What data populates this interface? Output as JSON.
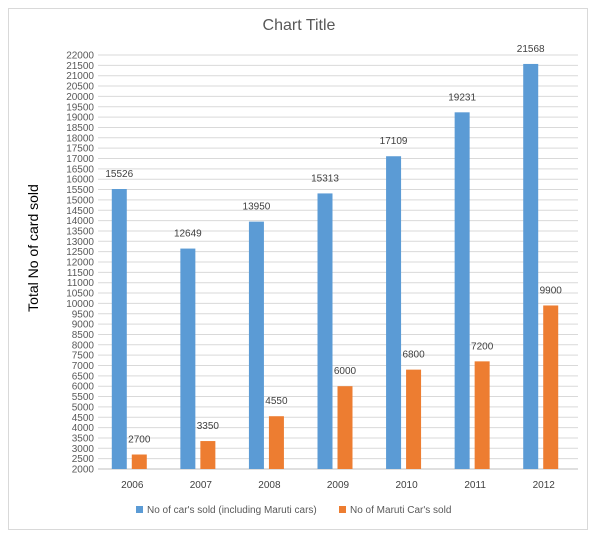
{
  "chart_data": {
    "type": "bar",
    "title": "Chart Title",
    "xlabel": "",
    "ylabel": "Total No of card sold",
    "categories": [
      "2006",
      "2007",
      "2008",
      "2009",
      "2010",
      "2011",
      "2012"
    ],
    "series": [
      {
        "name": "No of car's sold (including Maruti cars)",
        "color": "#5b9bd5",
        "values": [
          15526,
          12649,
          13950,
          15313,
          17109,
          19231,
          21568
        ]
      },
      {
        "name": "No of Maruti Car's sold",
        "color": "#ed7d31",
        "values": [
          2700,
          3350,
          4550,
          6000,
          6800,
          7200,
          9900
        ]
      }
    ],
    "ylim": [
      2000,
      22000
    ],
    "ytick_step": 500,
    "grid": true,
    "legend_position": "bottom"
  }
}
